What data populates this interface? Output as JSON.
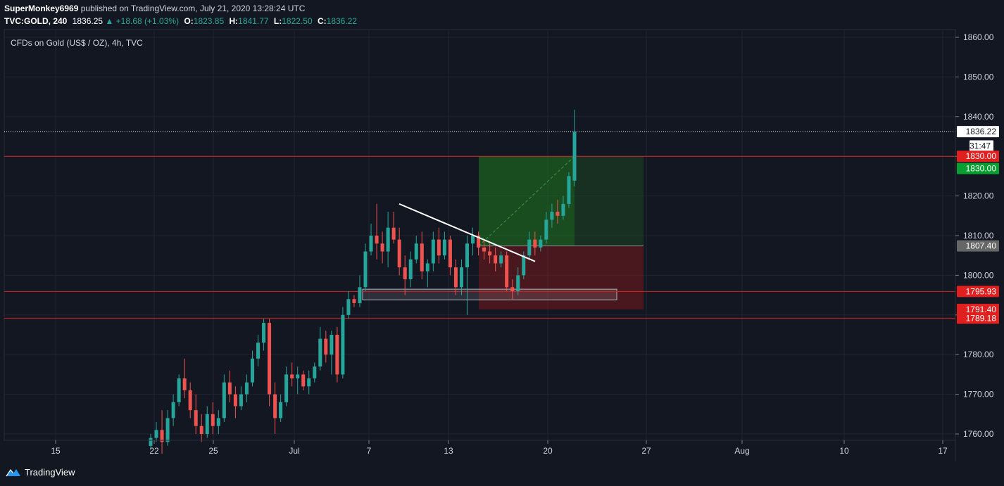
{
  "header": {
    "user": "SuperMonkey6969",
    "published_text": "published on TradingView.com, July 21, 2020 13:28:24 UTC",
    "symbol": "TVC:GOLD, 240",
    "last": "1836.25",
    "arrow": "▲",
    "change": "+18.68 (+1.03%)",
    "o_label": "O:",
    "o_value": "1823.85",
    "h_label": "H:",
    "h_value": "1841.77",
    "l_label": "L:",
    "l_value": "1822.50",
    "c_label": "C:",
    "c_value": "1836.22"
  },
  "chart_title": "CFDs on Gold (US$ / OZ), 4h, TVC",
  "price_axis": {
    "ticks": [
      "1860.00",
      "1850.00",
      "1840.00",
      "1830.00",
      "1820.00",
      "1810.00",
      "1800.00",
      "1790.00",
      "1780.00",
      "1770.00",
      "1760.00"
    ]
  },
  "time_axis": {
    "ticks": [
      "15",
      "22",
      "25",
      "Jul",
      "7",
      "13",
      "20",
      "27",
      "Aug",
      "10",
      "17"
    ]
  },
  "price_labels": [
    {
      "text": "1836.22",
      "price": 1836.22,
      "bg": "#ffffff",
      "fg": "#131722"
    },
    {
      "text": "31:47",
      "price": 1832.6,
      "bg": "#ffffff",
      "fg": "#131722",
      "small": true
    },
    {
      "text": "1830.00",
      "price": 1830.0,
      "bg": "#e01f1f",
      "fg": "#ffffff"
    },
    {
      "text": "1830.00",
      "price": 1826.9,
      "bg": "#089e30",
      "fg": "#ffffff"
    },
    {
      "text": "1807.40",
      "price": 1807.4,
      "bg": "#666666",
      "fg": "#ffffff"
    },
    {
      "text": "1795.93",
      "price": 1795.93,
      "bg": "#e01f1f",
      "fg": "#ffffff"
    },
    {
      "text": "1791.40",
      "price": 1791.4,
      "bg": "#e01f1f",
      "fg": "#ffffff"
    },
    {
      "text": "1789.18",
      "price": 1789.18,
      "bg": "#e01f1f",
      "fg": "#ffffff"
    }
  ],
  "horizontal_lines": [
    {
      "price": 1830.0,
      "color": "#e01f1f"
    },
    {
      "price": 1795.93,
      "color": "#e01f1f"
    },
    {
      "price": 1789.18,
      "color": "#e01f1f"
    }
  ],
  "current_price_line": 1836.22,
  "colors": {
    "bull": "#26a69a",
    "bear": "#ef5350",
    "background": "#131722",
    "grid": "#1f2433"
  },
  "chart_data": {
    "type": "candlestick",
    "y_range": [
      1758.5,
      1862.5
    ],
    "candles": [
      [
        1757,
        1760,
        1756,
        1759
      ],
      [
        1759,
        1763,
        1758,
        1761
      ],
      [
        1761,
        1766,
        1755,
        1758
      ],
      [
        1758,
        1766,
        1757,
        1764
      ],
      [
        1764,
        1770,
        1762,
        1768
      ],
      [
        1768,
        1775,
        1767,
        1774
      ],
      [
        1774,
        1779,
        1769,
        1771
      ],
      [
        1771,
        1773,
        1764,
        1766
      ],
      [
        1766,
        1770,
        1760,
        1762
      ],
      [
        1762,
        1765,
        1758,
        1760
      ],
      [
        1760,
        1767,
        1759,
        1765
      ],
      [
        1765,
        1768,
        1760,
        1762
      ],
      [
        1762,
        1766,
        1760,
        1764
      ],
      [
        1764,
        1775,
        1763,
        1773
      ],
      [
        1773,
        1776,
        1768,
        1770
      ],
      [
        1770,
        1772,
        1764,
        1767
      ],
      [
        1767,
        1772,
        1766,
        1770
      ],
      [
        1770,
        1775,
        1768,
        1773
      ],
      [
        1773,
        1781,
        1772,
        1779
      ],
      [
        1779,
        1785,
        1777,
        1783
      ],
      [
        1783,
        1789,
        1781,
        1788
      ],
      [
        1788,
        1789,
        1767,
        1770
      ],
      [
        1770,
        1773,
        1760,
        1764
      ],
      [
        1764,
        1770,
        1763,
        1768
      ],
      [
        1768,
        1777,
        1767,
        1775
      ],
      [
        1775,
        1778,
        1772,
        1774
      ],
      [
        1774,
        1777,
        1770,
        1775
      ],
      [
        1775,
        1776,
        1771,
        1772
      ],
      [
        1772,
        1776,
        1770,
        1774
      ],
      [
        1774,
        1778,
        1773,
        1777
      ],
      [
        1777,
        1787,
        1776,
        1784
      ],
      [
        1784,
        1786,
        1778,
        1780
      ],
      [
        1780,
        1786,
        1775,
        1785
      ],
      [
        1785,
        1787,
        1773,
        1775
      ],
      [
        1775,
        1792,
        1774,
        1790
      ],
      [
        1790,
        1796,
        1789,
        1794
      ],
      [
        1794,
        1795,
        1792,
        1793
      ],
      [
        1793,
        1800,
        1792,
        1797
      ],
      [
        1797,
        1808,
        1796,
        1806
      ],
      [
        1806,
        1813,
        1805,
        1810
      ],
      [
        1810,
        1818,
        1804,
        1808
      ],
      [
        1808,
        1811,
        1803,
        1806
      ],
      [
        1806,
        1816,
        1802,
        1812
      ],
      [
        1812,
        1816,
        1808,
        1809
      ],
      [
        1809,
        1812,
        1800,
        1802
      ],
      [
        1802,
        1805,
        1795,
        1799
      ],
      [
        1799,
        1806,
        1797,
        1804
      ],
      [
        1804,
        1810,
        1803,
        1808
      ],
      [
        1808,
        1811,
        1799,
        1801
      ],
      [
        1801,
        1804,
        1797,
        1803
      ],
      [
        1803,
        1811,
        1801,
        1809
      ],
      [
        1809,
        1812,
        1803,
        1805
      ],
      [
        1805,
        1811,
        1804,
        1809
      ],
      [
        1809,
        1810,
        1800,
        1802
      ],
      [
        1802,
        1804,
        1795,
        1797
      ],
      [
        1797,
        1804,
        1795,
        1802
      ],
      [
        1802,
        1810,
        1790,
        1808
      ],
      [
        1808,
        1812,
        1805,
        1810
      ],
      [
        1810,
        1811,
        1805,
        1807
      ],
      [
        1807,
        1809,
        1804,
        1806
      ],
      [
        1806,
        1808,
        1803,
        1805
      ],
      [
        1805,
        1807,
        1801,
        1803
      ],
      [
        1803,
        1806,
        1802,
        1805
      ],
      [
        1805,
        1806,
        1796,
        1797
      ],
      [
        1797,
        1799,
        1794,
        1796
      ],
      [
        1796,
        1802,
        1795,
        1800
      ],
      [
        1800,
        1806,
        1799,
        1805
      ],
      [
        1805,
        1811,
        1804,
        1809
      ],
      [
        1809,
        1811,
        1805,
        1807
      ],
      [
        1807,
        1810,
        1806,
        1809
      ],
      [
        1809,
        1816,
        1808,
        1814
      ],
      [
        1814,
        1818,
        1812,
        1816
      ],
      [
        1816,
        1819,
        1813,
        1815
      ],
      [
        1815,
        1820,
        1814,
        1818
      ],
      [
        1818,
        1826,
        1817,
        1825
      ],
      [
        1823.85,
        1841.77,
        1822.5,
        1836.22
      ]
    ]
  }
}
